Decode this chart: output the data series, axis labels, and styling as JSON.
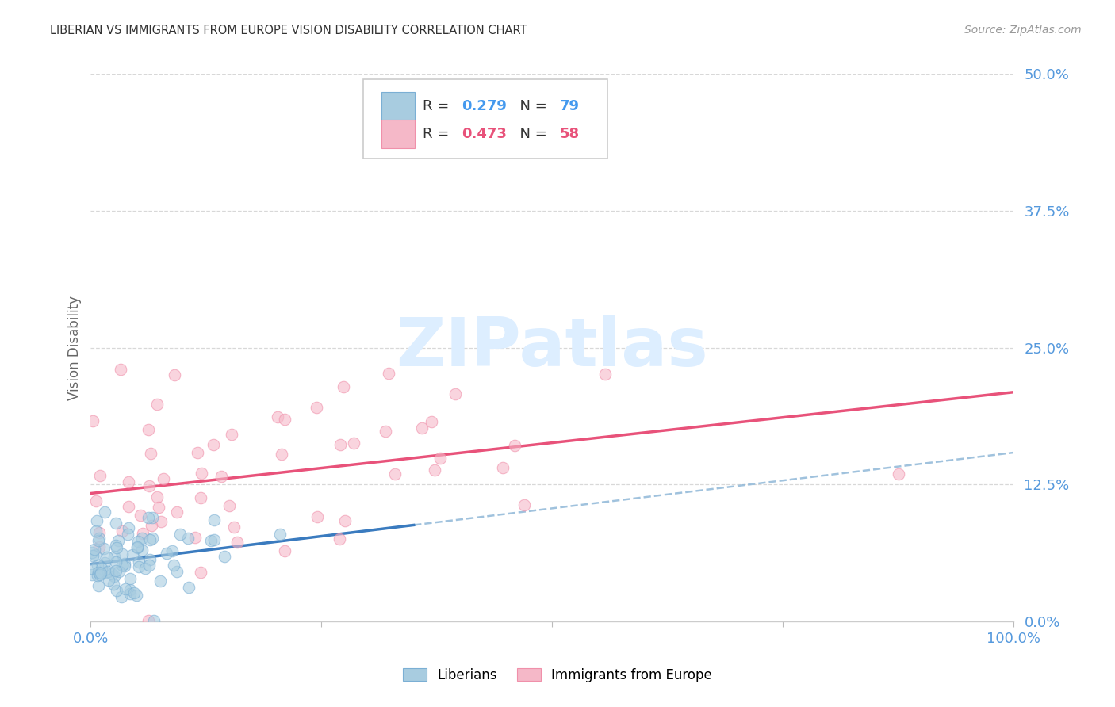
{
  "title": "LIBERIAN VS IMMIGRANTS FROM EUROPE VISION DISABILITY CORRELATION CHART",
  "source": "Source: ZipAtlas.com",
  "ylabel": "Vision Disability",
  "xlim": [
    0,
    1.0
  ],
  "ylim": [
    0,
    0.5
  ],
  "yticks": [
    0.0,
    0.125,
    0.25,
    0.375,
    0.5
  ],
  "ytick_labels": [
    "0.0%",
    "12.5%",
    "25.0%",
    "37.5%",
    "50.0%"
  ],
  "xticks": [
    0.0,
    0.25,
    0.5,
    0.75,
    1.0
  ],
  "xtick_labels": [
    "0.0%",
    "",
    "",
    "",
    "100.0%"
  ],
  "liberian_R": 0.279,
  "liberian_N": 79,
  "europe_R": 0.473,
  "europe_N": 58,
  "color_liberian_fill": "#a8cce0",
  "color_liberian_edge": "#7bafd4",
  "color_europe_fill": "#f5b8c8",
  "color_europe_edge": "#f090aa",
  "color_liberian_line": "#3a7bbf",
  "color_europe_line": "#e8527a",
  "color_blue_dashed": "#90b8d8",
  "color_tick_labels": "#5599dd",
  "color_grid": "#d8d8d8",
  "color_title": "#333333",
  "color_source": "#999999",
  "color_ylabel": "#666666",
  "color_legend_text_label": "#333333",
  "color_legend_text_value": "#4499ee",
  "color_legend_text_pink": "#e8527a",
  "watermark_color": "#ddeeff",
  "seed": 12345
}
